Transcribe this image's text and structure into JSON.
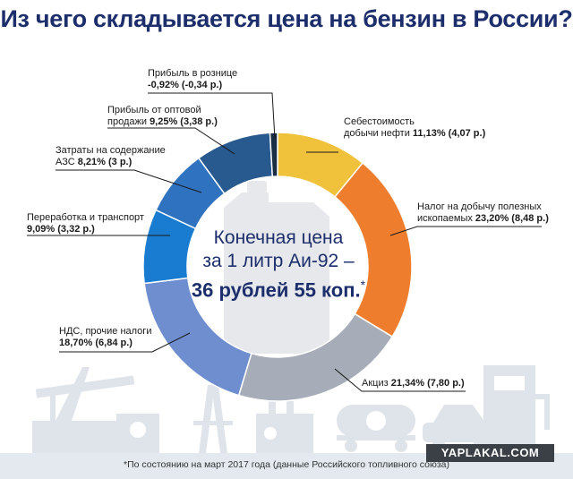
{
  "title": "Из чего складывается цена на бензин в России?",
  "center": {
    "line1": "Конечная цена",
    "line2": "за 1 литр Аи-92 –",
    "line3": "36 рублей 55 коп.",
    "asterisk": "*"
  },
  "footnote": "*По состоянию на март 2017 года (данные Российского топливного союза)",
  "watermark": "YAPLAKAL.COM",
  "colors": {
    "title": "#1c2e6b",
    "cost": "#f0c13a",
    "tax_mining": "#ee7e2d",
    "excise": "#a6adb8",
    "vat": "#6e8ecf",
    "processing": "#1a7cd0",
    "station": "#2f73c0",
    "wholesale": "#28598f",
    "retail": "#1b2d45"
  },
  "chart_data": {
    "type": "pie",
    "donut": true,
    "unit": "%",
    "slices": [
      {
        "label": "Себестоимость добычи нефти",
        "percent": 11.13,
        "rub": 4.07,
        "value_text": "11,13% (4,07 р.)",
        "color": "#f0c13a"
      },
      {
        "label": "Налог на добычу полезных ископаемых",
        "percent": 23.2,
        "rub": 8.48,
        "value_text": "23,20% (8,48 р.)",
        "color": "#ee7e2d"
      },
      {
        "label": "Акциз",
        "percent": 21.34,
        "rub": 7.8,
        "value_text": "21,34% (7,80 р.)",
        "color": "#a6adb8"
      },
      {
        "label": "НДС, прочие налоги",
        "percent": 18.7,
        "rub": 6.84,
        "value_text": "18,70% (6,84 р.)",
        "color": "#6e8ecf"
      },
      {
        "label": "Переработка и транспорт",
        "percent": 9.09,
        "rub": 3.32,
        "value_text": "9,09% (3,32 р.)",
        "color": "#1a7cd0"
      },
      {
        "label": "Затраты на содержание АЗС",
        "percent": 8.21,
        "rub": 3.0,
        "value_text": "8,21% (3 р.)",
        "color": "#2f73c0"
      },
      {
        "label": "Прибыль от оптовой продажи",
        "percent": 9.25,
        "rub": 3.38,
        "value_text": "9,25% (3,38 р.)",
        "color": "#28598f"
      },
      {
        "label": "Прибыль в рознице",
        "percent": -0.92,
        "rub": -0.34,
        "value_text": "-0,92% (-0,34 р.)",
        "color": "#1b2d45"
      }
    ],
    "total_rub": 36.55
  },
  "labels": {
    "cost": {
      "line1": "Себестоимость",
      "line2": "добычи нефти",
      "value": "11,13% (4,07 р.)"
    },
    "tax_mining": {
      "line1": "Налог на добычу полезных",
      "line2": "ископаемых",
      "value": "23,20% (8,48 р.)"
    },
    "excise": {
      "line1": "Акциз",
      "value": "21,34% (7,80 р.)"
    },
    "vat": {
      "line1": "НДС, прочие налоги",
      "value": "18,70% (6,84 р.)"
    },
    "processing": {
      "line1": "Переработка и транспорт",
      "value": "9,09% (3,32 р.)"
    },
    "station": {
      "line1": "Затраты на содержание",
      "line2": "АЗС",
      "value": "8,21% (3 р.)"
    },
    "wholesale": {
      "line1": "Прибыль от оптовой",
      "line2": "продажи",
      "value": "9,25% (3,38 р.)"
    },
    "retail": {
      "line1": "Прибыль в рознице",
      "value": "-0,92% (-0,34 р.)"
    }
  }
}
